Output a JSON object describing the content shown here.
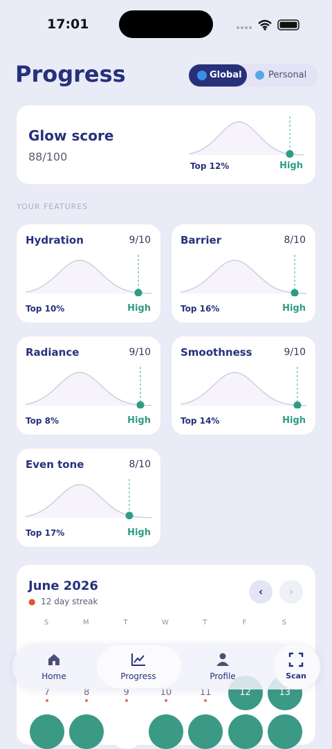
{
  "status_bar": {
    "time": "17:01"
  },
  "header": {
    "title": "Progress",
    "toggle": [
      "Global",
      "Personal"
    ]
  },
  "glow_card": {
    "title": "Glow score",
    "score": "88/100",
    "rank": "Top 12%",
    "level": "High"
  },
  "section_label": "YOUR FEATURES",
  "features": [
    {
      "name": "Hydration",
      "score": "9/10",
      "rank": "Top 10%",
      "level": "High"
    },
    {
      "name": "Barrier",
      "score": "8/10",
      "rank": "Top 16%",
      "level": "High"
    },
    {
      "name": "Radiance",
      "score": "9/10",
      "rank": "Top 8%",
      "level": "High"
    },
    {
      "name": "Smoothness",
      "score": "9/10",
      "rank": "Top 14%",
      "level": "High"
    },
    {
      "name": "Even tone",
      "score": "8/10",
      "rank": "Top 17%",
      "level": "High"
    }
  ],
  "calendar": {
    "month": "June 2026",
    "streak": "12 day streak",
    "weekdays": [
      "S",
      "M",
      "T",
      "W",
      "T",
      "F",
      "S"
    ],
    "dates": [
      "7",
      "8",
      "9",
      "10",
      "11",
      "12",
      "13"
    ]
  },
  "nav": [
    "Home",
    "Progress",
    "Profile",
    "Scan"
  ]
}
